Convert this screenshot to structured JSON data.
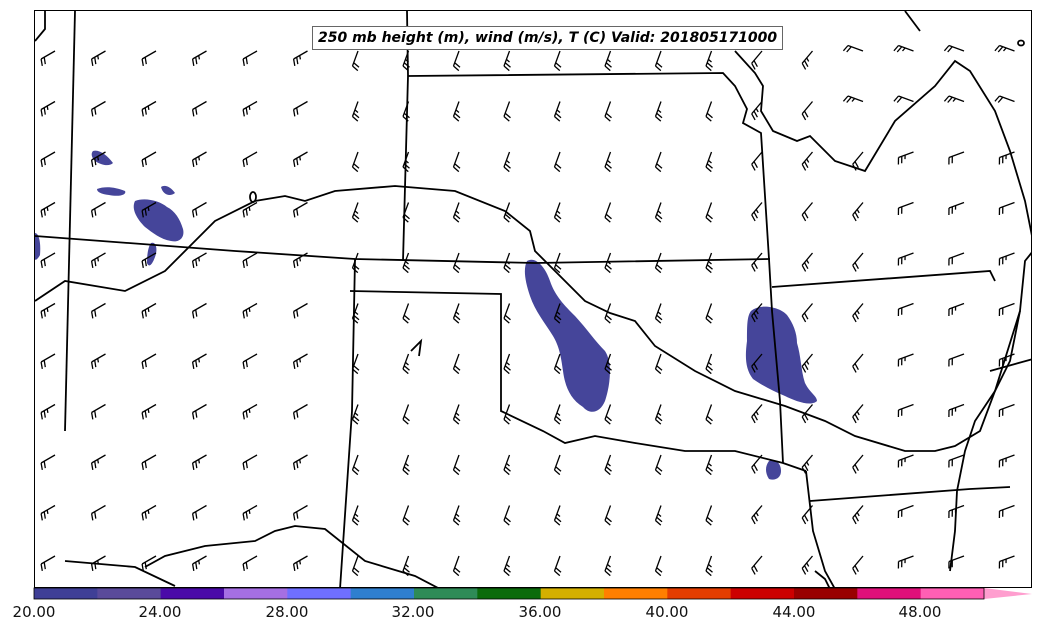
{
  "title": "250 mb height (m), wind (m/s), T (C) Valid: 201805171000",
  "colorbar": {
    "ticks": [
      "20.00",
      "24.00",
      "28.00",
      "32.00",
      "36.00",
      "40.00",
      "44.00",
      "48.00"
    ],
    "colors": [
      "#3f3f96",
      "#5a4a9a",
      "#4a0aa8",
      "#a56fe3",
      "#6f6fff",
      "#2f7fcf",
      "#2e8b57",
      "#0b6b0b",
      "#d4b000",
      "#ff7f00",
      "#e43d00",
      "#cc0000",
      "#990000",
      "#e0107a",
      "#ff5fb4"
    ],
    "extend_color": "#ff9ecf"
  },
  "map": {
    "fill_color": "#45459a",
    "line_color": "#000000"
  }
}
